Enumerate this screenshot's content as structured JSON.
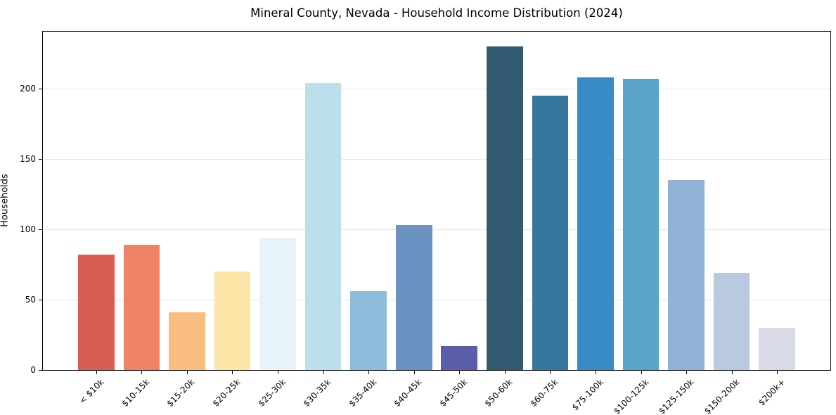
{
  "chart_data": {
    "type": "bar",
    "title": "Mineral County, Nevada - Household Income Distribution (2024)",
    "xlabel": "",
    "ylabel": "Households",
    "categories": [
      "< $10k",
      "$10-15k",
      "$15-20k",
      "$20-25k",
      "$25-30k",
      "$30-35k",
      "$35-40k",
      "$40-45k",
      "$45-50k",
      "$50-60k",
      "$60-75k",
      "$75-100k",
      "$100-125k",
      "$125-150k",
      "$150-200k",
      "$200k+"
    ],
    "values": [
      82,
      89,
      41,
      70,
      94,
      204,
      56,
      103,
      17,
      230,
      195,
      208,
      207,
      135,
      69,
      30
    ],
    "bar_colors": [
      "#d85e54",
      "#f08266",
      "#fabd80",
      "#fde5a7",
      "#e7f3f8",
      "#bddfec",
      "#90bcdb",
      "#6b92c3",
      "#5a5ea8",
      "#325a70",
      "#35779e",
      "#378cc4",
      "#5aa4c9",
      "#8fb2d5",
      "#b9c9df",
      "#d8dae7"
    ],
    "yticks": [
      0,
      50,
      100,
      150,
      200
    ],
    "ylim": [
      0,
      241.5
    ],
    "grid": "horizontal",
    "gridline_color": "#e5e5e5",
    "axis_color": "#000000",
    "background_color": "#ffffff"
  }
}
